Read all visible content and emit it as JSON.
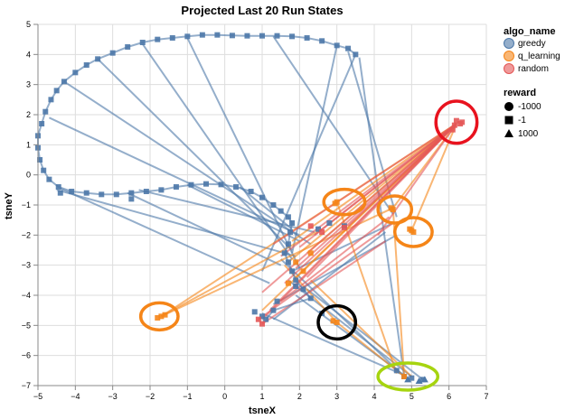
{
  "chart_data": {
    "type": "scatter",
    "title": "Projected Last 20 Run States",
    "xlabel": "tsneX",
    "ylabel": "tsneY",
    "xlim": [
      -5,
      7
    ],
    "ylim": [
      -7,
      5
    ],
    "x_ticks": [
      "−5",
      "−4",
      "−3",
      "−2",
      "−1",
      "0",
      "1",
      "2",
      "3",
      "4",
      "5",
      "6",
      "7"
    ],
    "y_ticks": [
      "5",
      "4",
      "3",
      "2",
      "1",
      "0",
      "−1",
      "−2",
      "−3",
      "−4",
      "−5",
      "−6",
      "−7"
    ],
    "grid": true,
    "legend_placement": "right",
    "color_legend": {
      "title": "algo_name",
      "entries": [
        {
          "label": "greedy",
          "color": "#4c78a8"
        },
        {
          "label": "q_learning",
          "color": "#f58518"
        },
        {
          "label": "random",
          "color": "#e45756"
        }
      ]
    },
    "shape_legend": {
      "title": "reward",
      "entries": [
        {
          "label": "-1000",
          "shape": "circle"
        },
        {
          "label": "-1",
          "shape": "square"
        },
        {
          "label": "1000",
          "shape": "triangle"
        }
      ]
    },
    "series": [
      {
        "name": "greedy",
        "color": "#4c78a8",
        "points": [
          [
            3.5,
            4.0
          ],
          [
            3.3,
            4.2
          ],
          [
            3.0,
            4.3
          ],
          [
            2.6,
            4.45
          ],
          [
            2.2,
            4.55
          ],
          [
            1.8,
            4.6
          ],
          [
            1.4,
            4.62
          ],
          [
            1.0,
            4.62
          ],
          [
            0.6,
            4.62
          ],
          [
            0.2,
            4.63
          ],
          [
            -0.2,
            4.65
          ],
          [
            -0.6,
            4.65
          ],
          [
            -1.0,
            4.6
          ],
          [
            -1.4,
            4.55
          ],
          [
            -1.8,
            4.5
          ],
          [
            -2.2,
            4.4
          ],
          [
            -2.6,
            4.25
          ],
          [
            -3.0,
            4.05
          ],
          [
            -3.4,
            3.85
          ],
          [
            -3.7,
            3.65
          ],
          [
            -4.0,
            3.4
          ],
          [
            -4.3,
            3.1
          ],
          [
            -4.5,
            2.8
          ],
          [
            -4.65,
            2.5
          ],
          [
            -4.8,
            2.1
          ],
          [
            -4.9,
            1.7
          ],
          [
            -5.0,
            1.3
          ],
          [
            -5.0,
            0.9
          ],
          [
            -4.95,
            0.5
          ],
          [
            -4.85,
            0.15
          ],
          [
            -4.7,
            -0.15
          ],
          [
            -4.45,
            -0.4
          ],
          [
            -4.1,
            -0.55
          ],
          [
            -3.7,
            -0.6
          ],
          [
            -3.3,
            -0.65
          ],
          [
            -2.9,
            -0.65
          ],
          [
            -2.5,
            -0.6
          ],
          [
            -2.1,
            -0.55
          ],
          [
            -1.7,
            -0.5
          ],
          [
            -1.3,
            -0.4
          ],
          [
            -0.9,
            -0.33
          ],
          [
            -0.5,
            -0.3
          ],
          [
            -0.1,
            -0.32
          ],
          [
            0.3,
            -0.4
          ],
          [
            0.7,
            -0.55
          ],
          [
            1.0,
            -0.75
          ],
          [
            1.3,
            -1.0
          ],
          [
            1.5,
            -1.2
          ],
          [
            1.7,
            -1.4
          ],
          [
            1.8,
            -1.6
          ],
          [
            1.75,
            -1.9
          ],
          [
            1.7,
            -2.3
          ],
          [
            1.6,
            -2.6
          ],
          [
            1.7,
            -2.9
          ],
          [
            1.8,
            -3.2
          ],
          [
            1.9,
            -3.5
          ],
          [
            2.1,
            -3.8
          ],
          [
            2.3,
            -4.1
          ],
          [
            1.3,
            -4.5
          ],
          [
            1.1,
            -4.8
          ],
          [
            1.0,
            -4.7
          ],
          [
            2.5,
            -1.8
          ],
          [
            2.8,
            -1.6
          ],
          [
            3.2,
            -1.7
          ],
          [
            4.8,
            -6.7
          ],
          [
            5.0,
            -6.75
          ],
          [
            5.3,
            -6.8
          ],
          [
            4.6,
            -6.5
          ],
          [
            -2.5,
            -0.8
          ],
          [
            -4.4,
            -0.6
          ],
          [
            2.6,
            -4.6
          ],
          [
            0.8,
            -4.55
          ],
          [
            1.4,
            -4.2
          ],
          [
            1.9,
            -3.7
          ]
        ]
      },
      {
        "name": "q_learning",
        "color": "#f58518",
        "points": [
          [
            -1.7,
            -4.7
          ],
          [
            -1.6,
            -4.65
          ],
          [
            -1.8,
            -4.75
          ],
          [
            3.0,
            -4.9
          ],
          [
            2.9,
            -4.85
          ],
          [
            3.0,
            -0.9
          ],
          [
            2.95,
            -0.95
          ],
          [
            4.5,
            -1.15
          ],
          [
            4.45,
            -1.1
          ],
          [
            5.0,
            -1.85
          ],
          [
            4.95,
            -1.8
          ],
          [
            5.05,
            -1.9
          ],
          [
            1.7,
            -3.6
          ],
          [
            2.1,
            -3.2
          ],
          [
            1.9,
            -2.9
          ],
          [
            2.3,
            -2.6
          ],
          [
            4.8,
            -6.7
          ]
        ]
      },
      {
        "name": "random",
        "color": "#e45756",
        "points": [
          [
            6.2,
            1.8
          ],
          [
            6.3,
            1.7
          ],
          [
            6.15,
            1.65
          ],
          [
            6.35,
            1.75
          ],
          [
            6.1,
            1.5
          ],
          [
            0.9,
            -4.8
          ],
          [
            1.0,
            -4.95
          ],
          [
            2.3,
            -1.7
          ],
          [
            3.2,
            -1.75
          ],
          [
            2.6,
            -1.9
          ]
        ]
      }
    ],
    "trajectories": [
      {
        "series": "greedy",
        "x": [
          3.5,
          1.0
        ],
        "y": [
          4.0,
          -3.2
        ]
      },
      {
        "series": "greedy",
        "x": [
          3.3,
          4.6
        ],
        "y": [
          4.1,
          -1.4
        ]
      },
      {
        "series": "greedy",
        "x": [
          3.0,
          1.8
        ],
        "y": [
          4.3,
          -2.6
        ]
      },
      {
        "series": "greedy",
        "x": [
          1.3,
          4.5
        ],
        "y": [
          4.6,
          -1.3
        ]
      },
      {
        "series": "greedy",
        "x": [
          -1.0,
          2.0
        ],
        "y": [
          4.55,
          -3.1
        ]
      },
      {
        "series": "greedy",
        "x": [
          -2.2,
          1.8
        ],
        "y": [
          4.35,
          -2.8
        ]
      },
      {
        "series": "greedy",
        "x": [
          -3.4,
          1.8
        ],
        "y": [
          3.85,
          -2.5
        ]
      },
      {
        "series": "greedy",
        "x": [
          -4.3,
          2.3
        ],
        "y": [
          3.1,
          -2.3
        ]
      },
      {
        "series": "greedy",
        "x": [
          -4.7,
          2.0
        ],
        "y": [
          1.9,
          -2.0
        ]
      },
      {
        "series": "greedy",
        "x": [
          -4.4,
          1.2
        ],
        "y": [
          -0.45,
          -3.6
        ]
      },
      {
        "series": "greedy",
        "x": [
          -2.6,
          1.5
        ],
        "y": [
          -0.6,
          -3.0
        ]
      },
      {
        "series": "greedy",
        "x": [
          -1.0,
          2.0
        ],
        "y": [
          -0.33,
          -2.2
        ]
      },
      {
        "series": "greedy",
        "x": [
          0.4,
          1.8
        ],
        "y": [
          -0.4,
          -1.8
        ]
      },
      {
        "series": "greedy",
        "x": [
          -4.5,
          1.9
        ],
        "y": [
          -0.5,
          -2.7
        ]
      },
      {
        "series": "greedy",
        "x": [
          -2.3,
          2.4
        ],
        "y": [
          -0.5,
          -1.9
        ]
      },
      {
        "series": "greedy",
        "x": [
          1.5,
          4.8
        ],
        "y": [
          -2.8,
          -6.7
        ]
      },
      {
        "series": "greedy",
        "x": [
          1.7,
          5.0
        ],
        "y": [
          -3.5,
          -6.7
        ]
      },
      {
        "series": "greedy",
        "x": [
          1.9,
          4.9
        ],
        "y": [
          -4.0,
          -6.75
        ]
      },
      {
        "series": "greedy",
        "x": [
          2.2,
          5.3
        ],
        "y": [
          -3.8,
          -6.8
        ]
      },
      {
        "series": "greedy",
        "x": [
          1.0,
          4.7
        ],
        "y": [
          -4.6,
          -6.6
        ]
      },
      {
        "series": "greedy",
        "x": [
          1.3,
          4.6
        ],
        "y": [
          -4.3,
          -2.0
        ]
      },
      {
        "series": "greedy",
        "x": [
          3.6,
          4.8
        ],
        "y": [
          3.9,
          -6.7
        ]
      },
      {
        "series": "greedy",
        "x": [
          1.8,
          4.5
        ],
        "y": [
          -3.2,
          -1.6
        ]
      },
      {
        "series": "greedy",
        "x": [
          1.3,
          4.3
        ],
        "y": [
          -4.8,
          -1.9
        ]
      },
      {
        "series": "q_learning",
        "x": [
          -1.7,
          3.0
        ],
        "y": [
          -4.7,
          -0.9
        ]
      },
      {
        "series": "q_learning",
        "x": [
          -1.7,
          2.6
        ],
        "y": [
          -4.7,
          -1.8
        ]
      },
      {
        "series": "q_learning",
        "x": [
          -1.7,
          4.5
        ],
        "y": [
          -4.7,
          -1.1
        ]
      },
      {
        "series": "q_learning",
        "x": [
          3.0,
          6.2
        ],
        "y": [
          -0.9,
          1.7
        ]
      },
      {
        "series": "q_learning",
        "x": [
          4.5,
          6.2
        ],
        "y": [
          -1.1,
          1.7
        ]
      },
      {
        "series": "q_learning",
        "x": [
          5.0,
          6.2
        ],
        "y": [
          -1.85,
          1.7
        ]
      },
      {
        "series": "q_learning",
        "x": [
          1.7,
          6.2
        ],
        "y": [
          -2.9,
          1.7
        ]
      },
      {
        "series": "q_learning",
        "x": [
          1.9,
          6.2
        ],
        "y": [
          -3.4,
          1.7
        ]
      },
      {
        "series": "q_learning",
        "x": [
          2.2,
          6.2
        ],
        "y": [
          -2.6,
          1.7
        ]
      },
      {
        "series": "q_learning",
        "x": [
          1.8,
          6.2
        ],
        "y": [
          -2.2,
          1.7
        ]
      },
      {
        "series": "q_learning",
        "x": [
          3.0,
          4.8
        ],
        "y": [
          -4.9,
          -6.7
        ]
      },
      {
        "series": "q_learning",
        "x": [
          3.0,
          4.6
        ],
        "y": [
          -0.9,
          -6.6
        ]
      },
      {
        "series": "q_learning",
        "x": [
          4.5,
          4.8
        ],
        "y": [
          -1.1,
          -6.7
        ]
      },
      {
        "series": "q_learning",
        "x": [
          2.3,
          5.0
        ],
        "y": [
          -3.5,
          -6.7
        ]
      },
      {
        "series": "q_learning",
        "x": [
          1.6,
          3.0
        ],
        "y": [
          -3.0,
          -4.9
        ]
      },
      {
        "series": "q_learning",
        "x": [
          1.0,
          6.2
        ],
        "y": [
          -4.5,
          1.7
        ]
      },
      {
        "series": "random",
        "x": [
          6.2,
          1.3
        ],
        "y": [
          1.7,
          -2.3
        ]
      },
      {
        "series": "random",
        "x": [
          6.2,
          1.5
        ],
        "y": [
          1.7,
          -2.7
        ]
      },
      {
        "series": "random",
        "x": [
          6.2,
          1.9
        ],
        "y": [
          1.7,
          -3.1
        ]
      },
      {
        "series": "random",
        "x": [
          6.2,
          2.2
        ],
        "y": [
          1.7,
          -3.4
        ]
      },
      {
        "series": "random",
        "x": [
          6.2,
          1.0
        ],
        "y": [
          1.7,
          -4.8
        ]
      },
      {
        "series": "random",
        "x": [
          6.2,
          1.2
        ],
        "y": [
          1.7,
          -4.5
        ]
      },
      {
        "series": "random",
        "x": [
          6.2,
          2.4
        ],
        "y": [
          1.7,
          -2.0
        ]
      },
      {
        "series": "random",
        "x": [
          6.2,
          1.0
        ],
        "y": [
          1.7,
          -3.9
        ]
      },
      {
        "series": "random",
        "x": [
          6.2,
          2.0
        ],
        "y": [
          1.7,
          -2.4
        ]
      },
      {
        "series": "random",
        "x": [
          6.2,
          1.6
        ],
        "y": [
          1.7,
          -3.6
        ]
      },
      {
        "series": "random",
        "x": [
          6.2,
          3.3
        ],
        "y": [
          1.7,
          -1.7
        ]
      },
      {
        "series": "random",
        "x": [
          6.2,
          4.1
        ],
        "y": [
          1.7,
          -2.0
        ]
      },
      {
        "series": "random",
        "x": [
          0.9,
          4.5
        ],
        "y": [
          -4.8,
          -1.6
        ]
      },
      {
        "series": "random",
        "x": [
          1.0,
          4.3
        ],
        "y": [
          -4.95,
          -2.2
        ]
      },
      {
        "series": "random",
        "x": [
          1.5,
          4.4
        ],
        "y": [
          -4.2,
          -1.4
        ]
      }
    ]
  },
  "annotations": [
    {
      "name": "highlight-circle-red",
      "color": "#e8121e",
      "cx": 6.2,
      "cy": 1.75,
      "rx": 0.55,
      "ry": 0.7
    },
    {
      "name": "highlight-circle-orange-1",
      "color": "#f58518",
      "cx": 3.2,
      "cy": -0.9,
      "rx": 0.55,
      "ry": 0.42
    },
    {
      "name": "highlight-circle-orange-2",
      "color": "#f58518",
      "cx": 4.55,
      "cy": -1.15,
      "rx": 0.45,
      "ry": 0.45
    },
    {
      "name": "highlight-circle-orange-3",
      "color": "#f58518",
      "cx": 5.05,
      "cy": -1.9,
      "rx": 0.5,
      "ry": 0.48
    },
    {
      "name": "highlight-circle-orange-4",
      "color": "#f58518",
      "cx": -1.75,
      "cy": -4.7,
      "rx": 0.5,
      "ry": 0.45
    },
    {
      "name": "highlight-circle-black",
      "color": "#000000",
      "cx": 3.0,
      "cy": -4.9,
      "rx": 0.5,
      "ry": 0.55
    },
    {
      "name": "highlight-circle-lime",
      "color": "#a6d40f",
      "cx": 4.9,
      "cy": -6.7,
      "rx": 0.8,
      "ry": 0.45
    }
  ]
}
